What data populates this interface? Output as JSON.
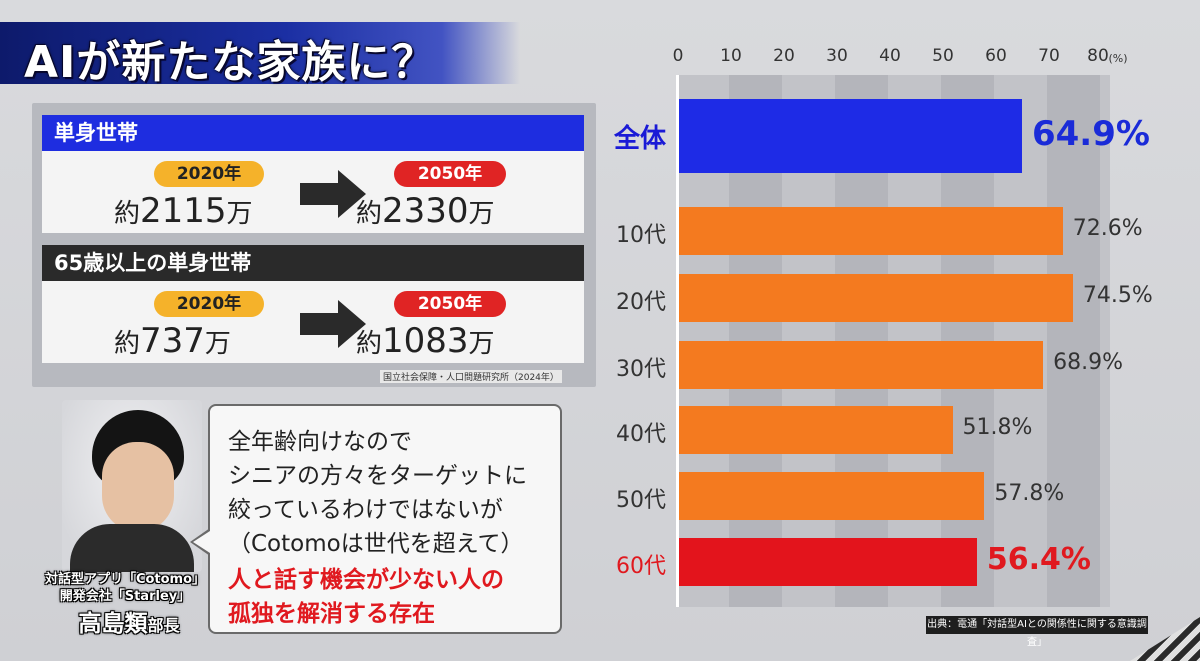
{
  "title": "AIが新たな家族に？",
  "panel": {
    "single": {
      "header": "単身世帯",
      "from_year": "2020年",
      "from_prefix": "約",
      "from_value": "2115",
      "from_unit": "万",
      "to_year": "2050年",
      "to_prefix": "約",
      "to_value": "2330",
      "to_unit": "万"
    },
    "elderly": {
      "header": "65歳以上の単身世帯",
      "from_year": "2020年",
      "from_prefix": "約",
      "from_value": "737",
      "from_unit": "万",
      "to_year": "2050年",
      "to_prefix": "約",
      "to_value": "1083",
      "to_unit": "万"
    },
    "source": "国立社会保障・人口問題研究所（2024年）"
  },
  "person": {
    "caption_app": "対話型アプリ「Cotomo」",
    "caption_company": "開発会社「Starley」",
    "name": "高島類",
    "role": "部長"
  },
  "quote": {
    "lines": [
      "全年齢向けなので",
      "シニアの方々をターゲットに",
      "絞っているわけではないが",
      "（Cotomoは世代を超えて）"
    ],
    "highlight_lines": [
      "人と話す機会が少ない人の",
      "孤独を解消する存在"
    ]
  },
  "chart_data": {
    "type": "bar",
    "orientation": "horizontal",
    "categories": [
      "全体",
      "10代",
      "20代",
      "30代",
      "40代",
      "50代",
      "60代"
    ],
    "values": [
      64.9,
      72.6,
      74.5,
      68.9,
      51.8,
      57.8,
      56.4
    ],
    "value_labels": [
      "64.9%",
      "72.6%",
      "74.5%",
      "68.9%",
      "51.8%",
      "57.8%",
      "56.4%"
    ],
    "xlim": [
      0,
      80
    ],
    "ticks": [
      "0",
      "10",
      "20",
      "30",
      "40",
      "50",
      "60",
      "70",
      "80"
    ],
    "unit": "(%)",
    "grid": true,
    "colors": [
      "#1e2be6",
      "#f47a1f",
      "#f47a1f",
      "#f47a1f",
      "#f47a1f",
      "#f47a1f",
      "#e3141c"
    ],
    "source": "出典：電通「対話型AIとの関係性に関する意識調査」"
  }
}
